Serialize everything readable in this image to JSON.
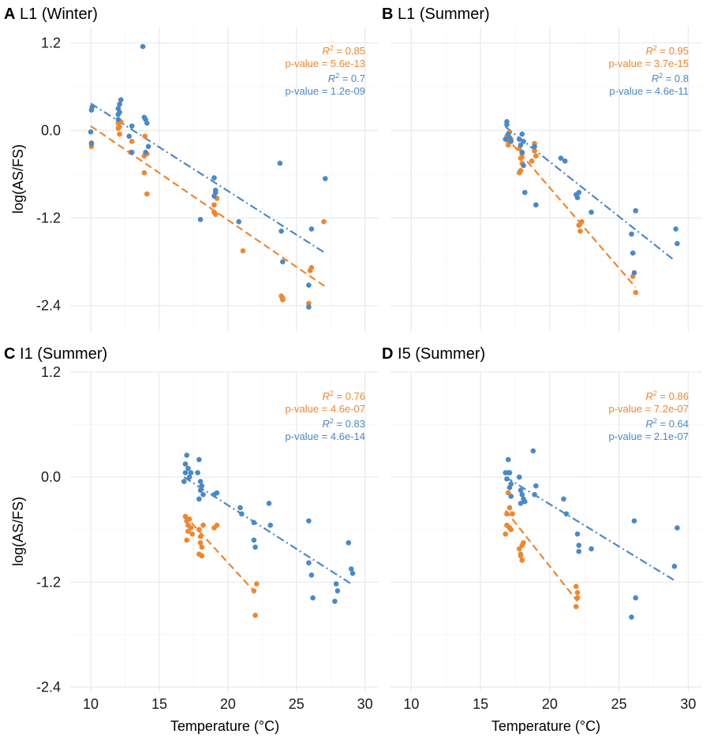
{
  "figure": {
    "x_axis_title_prefix": "Temperature (",
    "x_axis_title_unit": "°C",
    "x_axis_title_suffix": ")",
    "y_axis_title": "log(AS/FS)",
    "colors": {
      "series_a": "#f0862d",
      "series_b": "#4a89c9"
    }
  },
  "chart_data": [
    {
      "type": "scatter",
      "panel_tag": "A",
      "title": "L1 (Winter)",
      "xlim": [
        8.5,
        31
      ],
      "ylim": [
        -2.75,
        1.42
      ],
      "xticks": [
        "10",
        "15",
        "20",
        "25",
        "30"
      ],
      "yticks": [
        "1.2",
        "0.0",
        "-1.2",
        "-2.4"
      ],
      "show_x_ticks": false,
      "show_y_ticks": true,
      "stats": [
        {
          "r2": "0.85",
          "pvalue": "p-value = 5.6e-13",
          "color": "#f0862d"
        },
        {
          "r2": "0.7",
          "pvalue": "p-value = 1.2e-09",
          "color": "#4a89c9"
        }
      ],
      "series": [
        {
          "color": "#f0862d",
          "fit": {
            "x": [
              10,
              27.1
            ],
            "y": [
              0.06,
              -2.14
            ],
            "dash": "dashed"
          },
          "points": [
            [
              10.05,
              -0.17
            ],
            [
              10.05,
              -0.22
            ],
            [
              12,
              0.1
            ],
            [
              12,
              0.03
            ],
            [
              12.1,
              0.05
            ],
            [
              12.1,
              -0.05
            ],
            [
              12.2,
              0.12
            ],
            [
              12.9,
              -0.3
            ],
            [
              13,
              -0.15
            ],
            [
              13.9,
              -0.35
            ],
            [
              13.9,
              -0.58
            ],
            [
              14.1,
              -0.32
            ],
            [
              14.1,
              -0.87
            ],
            [
              13.95,
              -0.08
            ],
            [
              19,
              -1.02
            ],
            [
              19,
              -1.12
            ],
            [
              19.1,
              -1.15
            ],
            [
              19.2,
              -0.93
            ],
            [
              21.1,
              -1.65
            ],
            [
              23.9,
              -2.27
            ],
            [
              24,
              -2.3
            ],
            [
              24,
              -2.32
            ],
            [
              25.9,
              -2.37
            ],
            [
              26,
              -1.92
            ],
            [
              26.1,
              -1.88
            ],
            [
              27,
              -1.25
            ]
          ]
        },
        {
          "color": "#4a89c9",
          "fit": {
            "x": [
              10,
              27.1
            ],
            "y": [
              0.37,
              -1.68
            ],
            "dash": "dotdash"
          },
          "points": [
            [
              10.05,
              0.28
            ],
            [
              10.1,
              0.32
            ],
            [
              10,
              -0.02
            ],
            [
              10.05,
              -0.18
            ],
            [
              12,
              0.22
            ],
            [
              12,
              0.3
            ],
            [
              12.1,
              0.36
            ],
            [
              12.2,
              0.42
            ],
            [
              12.1,
              0.25
            ],
            [
              12,
              0.15
            ],
            [
              13,
              0.06
            ],
            [
              12.8,
              -0.08
            ],
            [
              13,
              -0.3
            ],
            [
              13.8,
              1.15
            ],
            [
              13.9,
              0.18
            ],
            [
              14,
              0.15
            ],
            [
              14.1,
              0.1
            ],
            [
              14.2,
              -0.22
            ],
            [
              14,
              -0.3
            ],
            [
              18,
              -1.22
            ],
            [
              19,
              -0.65
            ],
            [
              19.1,
              -0.82
            ],
            [
              19.1,
              -0.85
            ],
            [
              19,
              -0.9
            ],
            [
              20.8,
              -1.25
            ],
            [
              23.8,
              -0.45
            ],
            [
              23.9,
              -1.38
            ],
            [
              24,
              -1.8
            ],
            [
              25.9,
              -2.12
            ],
            [
              25.9,
              -2.42
            ],
            [
              26.1,
              -1.35
            ],
            [
              27.1,
              -0.66
            ]
          ]
        }
      ]
    },
    {
      "type": "scatter",
      "panel_tag": "B",
      "title": "L1 (Summer)",
      "xlim": [
        8.5,
        31
      ],
      "ylim": [
        -2.75,
        1.42
      ],
      "xticks": [
        "10",
        "15",
        "20",
        "25",
        "30"
      ],
      "yticks": [
        "1.2",
        "0.0",
        "-1.2",
        "-2.4"
      ],
      "show_x_ticks": false,
      "show_y_ticks": false,
      "stats": [
        {
          "r2": "0.95",
          "pvalue": "p-value = 3.7e-15",
          "color": "#f0862d"
        },
        {
          "r2": "0.8",
          "pvalue": "p-value = 4.6e-11",
          "color": "#4a89c9"
        }
      ],
      "series": [
        {
          "color": "#f0862d",
          "fit": {
            "x": [
              16.8,
              26.2
            ],
            "y": [
              -0.08,
              -2.15
            ],
            "dash": "dashed"
          },
          "points": [
            [
              16.9,
              -0.08
            ],
            [
              17,
              -0.15
            ],
            [
              17,
              -0.2
            ],
            [
              17.1,
              -0.02
            ],
            [
              17.2,
              -0.12
            ],
            [
              17.8,
              -0.25
            ],
            [
              17.9,
              -0.38
            ],
            [
              18,
              -0.32
            ],
            [
              18,
              -0.45
            ],
            [
              17.9,
              -0.55
            ],
            [
              17.8,
              -0.58
            ],
            [
              18.9,
              -0.18
            ],
            [
              18.9,
              -0.28
            ],
            [
              18.7,
              -0.42
            ],
            [
              19,
              -0.35
            ],
            [
              22.1,
              -1.3
            ],
            [
              22.2,
              -1.38
            ],
            [
              22.3,
              -1.25
            ],
            [
              26,
              -2
            ],
            [
              26.2,
              -2.22
            ]
          ]
        },
        {
          "color": "#4a89c9",
          "fit": {
            "x": [
              16.8,
              29
            ],
            "y": [
              0.05,
              -1.78
            ],
            "dash": "dotdash"
          },
          "points": [
            [
              16.9,
              0.12
            ],
            [
              16.9,
              0.08
            ],
            [
              16.8,
              -0.12
            ],
            [
              17,
              -0.05
            ],
            [
              17.1,
              -0.1
            ],
            [
              17.2,
              -0.15
            ],
            [
              17.8,
              -0.12
            ],
            [
              17.9,
              -0.2
            ],
            [
              18,
              -0.05
            ],
            [
              18.1,
              -0.15
            ],
            [
              18,
              -0.3
            ],
            [
              18.1,
              -0.48
            ],
            [
              18.2,
              -0.85
            ],
            [
              18.9,
              -0.22
            ],
            [
              19,
              -1.02
            ],
            [
              20.8,
              -0.38
            ],
            [
              21.1,
              -0.42
            ],
            [
              21.9,
              -0.88
            ],
            [
              22,
              -0.92
            ],
            [
              22.1,
              -0.85
            ],
            [
              23,
              -1.12
            ],
            [
              25.9,
              -1.42
            ],
            [
              26,
              -1.68
            ],
            [
              26.1,
              -1.95
            ],
            [
              26.2,
              -1.1
            ],
            [
              29.1,
              -1.35
            ],
            [
              29.2,
              -1.55
            ]
          ]
        }
      ]
    },
    {
      "type": "scatter",
      "panel_tag": "C",
      "title": "I1 (Summer)",
      "xlim": [
        8.5,
        31
      ],
      "ylim": [
        -2.45,
        1.2
      ],
      "xticks": [
        "10",
        "15",
        "20",
        "25",
        "30"
      ],
      "yticks": [
        "1.2",
        "0.0",
        "-1.2",
        "-2.4"
      ],
      "show_x_ticks": true,
      "show_y_ticks": true,
      "stats": [
        {
          "r2": "0.76",
          "pvalue": "p-value = 4.6e-07",
          "color": "#f0862d"
        },
        {
          "r2": "0.83",
          "pvalue": "p-value = 4.6e-14",
          "color": "#4a89c9"
        }
      ],
      "series": [
        {
          "color": "#f0862d",
          "fit": {
            "x": [
              16.8,
              22
            ],
            "y": [
              -0.43,
              -1.32
            ],
            "dash": "dashed"
          },
          "points": [
            [
              16.9,
              -0.45
            ],
            [
              17,
              -0.5
            ],
            [
              17.1,
              -0.55
            ],
            [
              17.1,
              -0.62
            ],
            [
              17,
              -0.72
            ],
            [
              17.2,
              -0.48
            ],
            [
              17.3,
              -0.58
            ],
            [
              17.4,
              -0.65
            ],
            [
              17.9,
              -0.6
            ],
            [
              18,
              -0.68
            ],
            [
              18,
              -0.75
            ],
            [
              18.1,
              -0.8
            ],
            [
              18.1,
              -0.9
            ],
            [
              17.9,
              -0.88
            ],
            [
              18.2,
              -0.55
            ],
            [
              19,
              -0.58
            ],
            [
              19.2,
              -0.55
            ],
            [
              21.9,
              -1.3
            ],
            [
              22,
              -1.58
            ],
            [
              22.1,
              -1.22
            ]
          ]
        },
        {
          "color": "#4a89c9",
          "fit": {
            "x": [
              16.8,
              29
            ],
            "y": [
              0.0,
              -1.22
            ],
            "dash": "dotdash"
          },
          "points": [
            [
              16.9,
              0.05
            ],
            [
              16.9,
              0.15
            ],
            [
              17,
              0.25
            ],
            [
              17.1,
              0.1
            ],
            [
              17.2,
              0.0
            ],
            [
              16.8,
              -0.05
            ],
            [
              17.3,
              0.05
            ],
            [
              17.8,
              0.05
            ],
            [
              17.9,
              0.2
            ],
            [
              18,
              -0.05
            ],
            [
              18,
              -0.15
            ],
            [
              18.1,
              -0.1
            ],
            [
              18.2,
              -0.2
            ],
            [
              17.9,
              -0.25
            ],
            [
              19,
              -0.2
            ],
            [
              19.2,
              -0.18
            ],
            [
              20.9,
              -0.35
            ],
            [
              21,
              -0.42
            ],
            [
              21.9,
              -0.52
            ],
            [
              21.9,
              -0.72
            ],
            [
              22,
              -0.8
            ],
            [
              23,
              -0.3
            ],
            [
              23.1,
              -0.55
            ],
            [
              25.9,
              -0.5
            ],
            [
              25.9,
              -0.98
            ],
            [
              26.1,
              -1.12
            ],
            [
              26.2,
              -1.38
            ],
            [
              27.9,
              -1.22
            ],
            [
              28,
              -1.3
            ],
            [
              27.8,
              -1.42
            ],
            [
              28.8,
              -0.75
            ],
            [
              29,
              -1.05
            ],
            [
              29.1,
              -1.1
            ]
          ]
        }
      ]
    },
    {
      "type": "scatter",
      "panel_tag": "D",
      "title": "I5 (Summer)",
      "xlim": [
        8.5,
        31
      ],
      "ylim": [
        -2.45,
        1.2
      ],
      "xticks": [
        "10",
        "15",
        "20",
        "25",
        "30"
      ],
      "yticks": [
        "1.2",
        "0.0",
        "-1.2",
        "-2.4"
      ],
      "show_x_ticks": true,
      "show_y_ticks": false,
      "stats": [
        {
          "r2": "0.86",
          "pvalue": "p-value = 7.2e-07",
          "color": "#f0862d"
        },
        {
          "r2": "0.64",
          "pvalue": "p-value = 2.1e-07",
          "color": "#4a89c9"
        }
      ],
      "series": [
        {
          "color": "#f0862d",
          "fit": {
            "x": [
              16.8,
              22
            ],
            "y": [
              -0.38,
              -1.42
            ],
            "dash": "dashed"
          },
          "points": [
            [
              16.9,
              -0.42
            ],
            [
              16.9,
              -0.55
            ],
            [
              16.8,
              -0.65
            ],
            [
              17,
              -0.18
            ],
            [
              17.1,
              -0.35
            ],
            [
              17.1,
              -0.58
            ],
            [
              17.3,
              -0.42
            ],
            [
              17.2,
              -0.6
            ],
            [
              17.8,
              -0.82
            ],
            [
              17.9,
              -0.88
            ],
            [
              17.9,
              -0.9
            ],
            [
              18,
              -0.78
            ],
            [
              18.1,
              -0.75
            ],
            [
              18,
              -0.95
            ],
            [
              21.9,
              -1.25
            ],
            [
              22,
              -1.32
            ],
            [
              21.9,
              -1.48
            ],
            [
              22,
              -1.38
            ]
          ]
        },
        {
          "color": "#4a89c9",
          "fit": {
            "x": [
              16.8,
              29
            ],
            "y": [
              0.0,
              -1.18
            ],
            "dash": "dotdash"
          },
          "points": [
            [
              16.8,
              0.05
            ],
            [
              17,
              0.05
            ],
            [
              17,
              0.2
            ],
            [
              17.1,
              0.05
            ],
            [
              16.9,
              -0.02
            ],
            [
              17.1,
              -0.12
            ],
            [
              17.2,
              -0.08
            ],
            [
              17.2,
              -0.22
            ],
            [
              17.8,
              0.0
            ],
            [
              17.9,
              -0.15
            ],
            [
              18,
              -0.2
            ],
            [
              18.1,
              -0.25
            ],
            [
              17.9,
              -0.3
            ],
            [
              18.2,
              -0.28
            ],
            [
              18.8,
              0.3
            ],
            [
              18.9,
              -0.2
            ],
            [
              19,
              -0.1
            ],
            [
              21,
              -0.25
            ],
            [
              21.2,
              -0.42
            ],
            [
              22,
              -0.65
            ],
            [
              22.1,
              -0.78
            ],
            [
              22.1,
              -0.85
            ],
            [
              23,
              -0.82
            ],
            [
              25.9,
              -1.6
            ],
            [
              26.1,
              -0.5
            ],
            [
              26.2,
              -1.38
            ],
            [
              29,
              -1.02
            ],
            [
              29.2,
              -0.58
            ]
          ]
        }
      ]
    }
  ]
}
